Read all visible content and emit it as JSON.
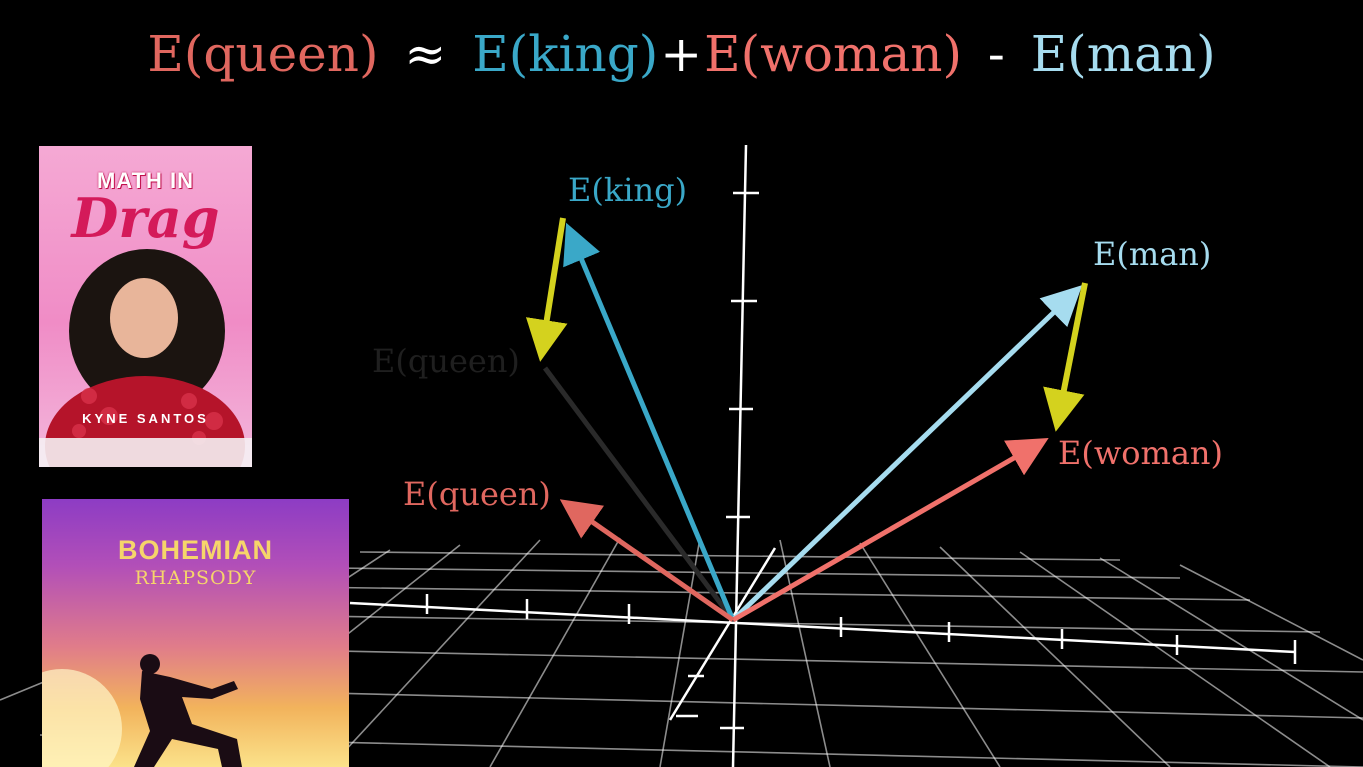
{
  "equation": {
    "lhs": "E(queen)",
    "approx": "≈",
    "term1": "E(king)",
    "plus": "+",
    "term2": "E(woman)",
    "minus": "-",
    "term3": "E(man)"
  },
  "labels": {
    "king": "E(king)",
    "man": "E(man)",
    "woman": "E(woman)",
    "queen": "E(queen)",
    "queen_ghost": "E(queen)"
  },
  "colors": {
    "queen": "#e0675f",
    "king": "#3aa8c8",
    "woman": "#f0716b",
    "man": "#a6dcef",
    "difference": "#d4d21e",
    "grid": "#ffffff"
  },
  "covers": {
    "math_in_drag": {
      "title": "MATH IN",
      "script": "Drag",
      "author": "KYNE SANTOS"
    },
    "bohemian_rhapsody": {
      "title": "BOHEMIAN",
      "subtitle": "RHAPSODY"
    }
  }
}
